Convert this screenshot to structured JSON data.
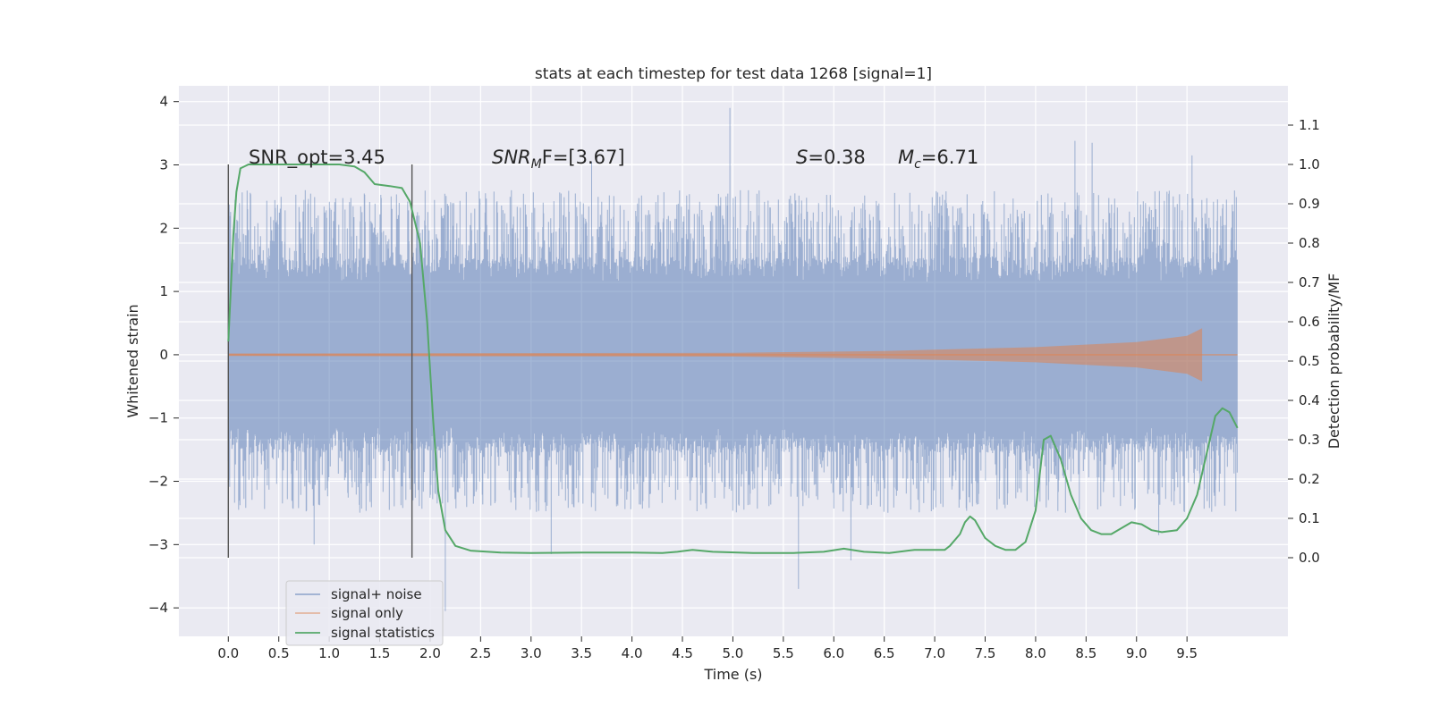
{
  "chart_data": {
    "type": "line",
    "title": "stats at each timestep for test data 1268 [signal=1]",
    "xlabel": "Time (s)",
    "ylabel_left": "Whitened strain",
    "ylabel_right": "Detection probability/MF",
    "xlim": [
      -0.49,
      10.5
    ],
    "ylim_left": [
      -4.45,
      4.25
    ],
    "ylim_right": [
      -0.2,
      1.2
    ],
    "x_ticks": [
      "0.0",
      "0.5",
      "1.0",
      "1.5",
      "2.0",
      "2.5",
      "3.0",
      "3.5",
      "4.0",
      "4.5",
      "5.0",
      "5.5",
      "6.0",
      "6.5",
      "7.0",
      "7.5",
      "8.0",
      "8.5",
      "9.0",
      "9.5"
    ],
    "y_left_ticks": [
      "4",
      "3",
      "2",
      "1",
      "0",
      "−1",
      "−2",
      "−3",
      "−4"
    ],
    "y_right_ticks": [
      "1.1",
      "1.0",
      "0.9",
      "0.8",
      "0.7",
      "0.6",
      "0.5",
      "0.4",
      "0.3",
      "0.2",
      "0.1",
      "0.0"
    ],
    "grid": true,
    "legend_position": "lower-left",
    "colors": {
      "background": "#eaeaf2",
      "grid": "#ffffff",
      "noise": "#4c72b0",
      "signal": "#dd8452",
      "stats": "#55a868",
      "marker_lines": "#555555"
    },
    "annotations": {
      "snr_opt": "SNR_opt=3.45",
      "snr_mf_prefix": "SNR",
      "snr_mf_sub": "M",
      "snr_mf_suffix": "F=[3.67]",
      "s_prefix": "S",
      "s_suffix": "=0.38",
      "mc_prefix": "M",
      "mc_sub": "c",
      "mc_suffix": "=6.71"
    },
    "vertical_markers": [
      0.0,
      1.82
    ],
    "series": [
      {
        "name": "signal+ noise",
        "kind": "noise-band",
        "x_range": [
          0.0,
          10.0
        ],
        "typical_range": [
          -2.0,
          2.2
        ],
        "spikes": [
          {
            "x": 4.97,
            "y": 3.9
          },
          {
            "x": 8.56,
            "y": 3.35
          },
          {
            "x": 8.39,
            "y": 3.38
          },
          {
            "x": 5.65,
            "y": -3.7
          },
          {
            "x": 2.15,
            "y": -4.05
          },
          {
            "x": 6.17,
            "y": -3.25
          },
          {
            "x": 3.6,
            "y": 3.05
          },
          {
            "x": 3.2,
            "y": -3.15
          },
          {
            "x": 0.85,
            "y": -3.0
          },
          {
            "x": 9.22,
            "y": -2.85
          },
          {
            "x": 9.55,
            "y": 3.15
          }
        ]
      },
      {
        "name": "signal only",
        "kind": "chirp",
        "x_range": [
          0.0,
          9.65
        ],
        "envelope": [
          [
            0.0,
            0.02
          ],
          [
            5.0,
            0.03
          ],
          [
            6.5,
            0.06
          ],
          [
            8.0,
            0.12
          ],
          [
            9.0,
            0.2
          ],
          [
            9.5,
            0.3
          ],
          [
            9.65,
            0.42
          ]
        ]
      },
      {
        "name": "signal statistics",
        "kind": "line",
        "axis": "right",
        "points": [
          [
            0.0,
            0.55
          ],
          [
            0.05,
            0.82
          ],
          [
            0.08,
            0.93
          ],
          [
            0.12,
            0.99
          ],
          [
            0.2,
            1.0
          ],
          [
            0.5,
            1.0
          ],
          [
            0.8,
            1.0
          ],
          [
            1.1,
            1.0
          ],
          [
            1.25,
            0.995
          ],
          [
            1.35,
            0.98
          ],
          [
            1.45,
            0.95
          ],
          [
            1.6,
            0.945
          ],
          [
            1.72,
            0.94
          ],
          [
            1.8,
            0.905
          ],
          [
            1.9,
            0.8
          ],
          [
            1.97,
            0.6
          ],
          [
            2.03,
            0.35
          ],
          [
            2.08,
            0.17
          ],
          [
            2.15,
            0.07
          ],
          [
            2.25,
            0.03
          ],
          [
            2.4,
            0.018
          ],
          [
            2.7,
            0.013
          ],
          [
            3.0,
            0.012
          ],
          [
            3.5,
            0.013
          ],
          [
            4.0,
            0.013
          ],
          [
            4.3,
            0.012
          ],
          [
            4.45,
            0.015
          ],
          [
            4.6,
            0.02
          ],
          [
            4.8,
            0.015
          ],
          [
            5.2,
            0.012
          ],
          [
            5.6,
            0.012
          ],
          [
            5.9,
            0.015
          ],
          [
            6.1,
            0.023
          ],
          [
            6.3,
            0.015
          ],
          [
            6.55,
            0.012
          ],
          [
            6.8,
            0.02
          ],
          [
            7.1,
            0.02
          ],
          [
            7.15,
            0.03
          ],
          [
            7.25,
            0.06
          ],
          [
            7.3,
            0.09
          ],
          [
            7.35,
            0.105
          ],
          [
            7.4,
            0.095
          ],
          [
            7.5,
            0.05
          ],
          [
            7.6,
            0.03
          ],
          [
            7.7,
            0.02
          ],
          [
            7.8,
            0.02
          ],
          [
            7.9,
            0.04
          ],
          [
            8.0,
            0.12
          ],
          [
            8.08,
            0.3
          ],
          [
            8.15,
            0.31
          ],
          [
            8.25,
            0.25
          ],
          [
            8.35,
            0.16
          ],
          [
            8.45,
            0.1
          ],
          [
            8.55,
            0.07
          ],
          [
            8.65,
            0.06
          ],
          [
            8.75,
            0.06
          ],
          [
            8.85,
            0.075
          ],
          [
            8.95,
            0.09
          ],
          [
            9.05,
            0.085
          ],
          [
            9.15,
            0.07
          ],
          [
            9.25,
            0.065
          ],
          [
            9.4,
            0.07
          ],
          [
            9.5,
            0.1
          ],
          [
            9.6,
            0.16
          ],
          [
            9.7,
            0.27
          ],
          [
            9.78,
            0.36
          ],
          [
            9.85,
            0.38
          ],
          [
            9.92,
            0.37
          ],
          [
            10.0,
            0.33
          ]
        ]
      }
    ]
  }
}
